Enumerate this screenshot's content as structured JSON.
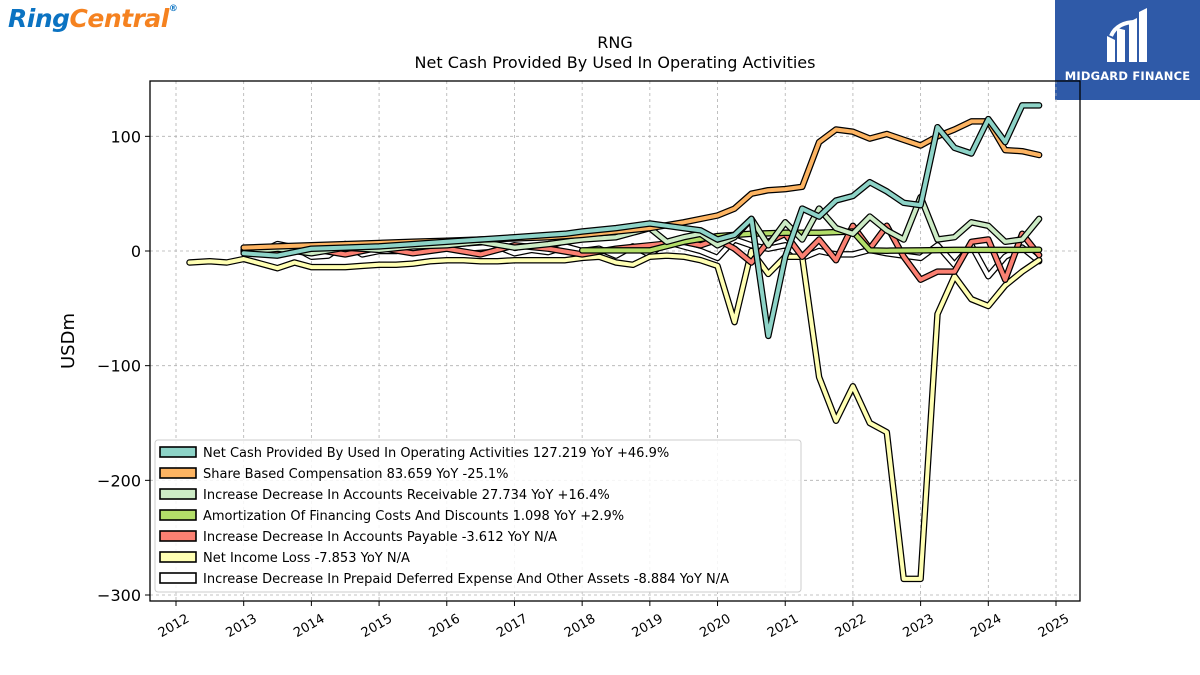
{
  "brand": {
    "left_logo_part1": "Ring",
    "left_logo_part2": "Central",
    "right_logo": "MIDGARD FINANCE"
  },
  "chart_data": {
    "type": "line",
    "title": "RNG",
    "subtitle": "Net Cash Provided By Used In Operating Activities",
    "ylabel": "USDm",
    "xlabel": "",
    "ylim": [
      -305,
      148
    ],
    "xlim": [
      2011.6,
      2025.4
    ],
    "yticks": [
      100,
      0,
      -100,
      -200,
      -300
    ],
    "ytick_labels": [
      "100",
      "0",
      "−100",
      "−200",
      "−300"
    ],
    "xticks": [
      2012,
      2013,
      2014,
      2015,
      2016,
      2017,
      2018,
      2019,
      2020,
      2021,
      2022,
      2023,
      2024,
      2025
    ],
    "xtick_labels": [
      "2012",
      "2013",
      "2014",
      "2015",
      "2016",
      "2017",
      "2018",
      "2019",
      "2020",
      "2021",
      "2022",
      "2023",
      "2024",
      "2025"
    ],
    "grid": true,
    "legend_position": "bottom-left",
    "series": [
      {
        "name": "Net Cash Provided By Used In Operating Activities",
        "legend": "Net Cash Provided By Used In Operating Activities  127.219 YoY +46.9%",
        "color": "#8dd3c7",
        "points": [
          [
            2013.0,
            -2
          ],
          [
            2013.5,
            -4
          ],
          [
            2014.0,
            2
          ],
          [
            2014.5,
            3
          ],
          [
            2015.0,
            4
          ],
          [
            2015.5,
            6
          ],
          [
            2016.0,
            8
          ],
          [
            2016.5,
            10
          ],
          [
            2017.0,
            12
          ],
          [
            2017.5,
            14
          ],
          [
            2017.75,
            15
          ],
          [
            2018.0,
            17
          ],
          [
            2018.5,
            20
          ],
          [
            2019.0,
            24
          ],
          [
            2019.25,
            22
          ],
          [
            2019.5,
            20
          ],
          [
            2019.75,
            18
          ],
          [
            2020.0,
            10
          ],
          [
            2020.25,
            14
          ],
          [
            2020.5,
            28
          ],
          [
            2020.75,
            -74
          ],
          [
            2021.0,
            -5
          ],
          [
            2021.25,
            37
          ],
          [
            2021.5,
            30
          ],
          [
            2021.75,
            44
          ],
          [
            2022.0,
            48
          ],
          [
            2022.25,
            60
          ],
          [
            2022.5,
            52
          ],
          [
            2022.75,
            42
          ],
          [
            2023.0,
            40
          ],
          [
            2023.25,
            108
          ],
          [
            2023.5,
            90
          ],
          [
            2023.75,
            85
          ],
          [
            2024.0,
            115
          ],
          [
            2024.25,
            95
          ],
          [
            2024.5,
            127
          ],
          [
            2024.75,
            127
          ]
        ]
      },
      {
        "name": "Share Based Compensation",
        "legend": "Share Based Compensation  83.659 YoY -25.1%",
        "color": "#fdb462",
        "points": [
          [
            2013.0,
            3
          ],
          [
            2013.5,
            4
          ],
          [
            2014.0,
            5
          ],
          [
            2014.5,
            6
          ],
          [
            2015.0,
            7
          ],
          [
            2015.5,
            8
          ],
          [
            2016.0,
            9
          ],
          [
            2016.5,
            10
          ],
          [
            2017.0,
            11
          ],
          [
            2017.5,
            12
          ],
          [
            2018.0,
            14
          ],
          [
            2018.5,
            17
          ],
          [
            2019.0,
            20
          ],
          [
            2019.5,
            25
          ],
          [
            2020.0,
            31
          ],
          [
            2020.25,
            37
          ],
          [
            2020.5,
            50
          ],
          [
            2020.75,
            53
          ],
          [
            2021.0,
            54
          ],
          [
            2021.25,
            56
          ],
          [
            2021.5,
            95
          ],
          [
            2021.75,
            106
          ],
          [
            2022.0,
            104
          ],
          [
            2022.25,
            98
          ],
          [
            2022.5,
            102
          ],
          [
            2022.75,
            97
          ],
          [
            2023.0,
            92
          ],
          [
            2023.25,
            100
          ],
          [
            2023.5,
            106
          ],
          [
            2023.75,
            113
          ],
          [
            2024.0,
            113
          ],
          [
            2024.25,
            88
          ],
          [
            2024.5,
            87
          ],
          [
            2024.75,
            83.7
          ]
        ]
      },
      {
        "name": "Increase Decrease In Accounts Receivable",
        "legend": "Increase Decrease In Accounts Receivable  27.734 YoY +16.4%",
        "color": "#ccebc5",
        "points": [
          [
            2013.0,
            -1
          ],
          [
            2013.5,
            2
          ],
          [
            2014.0,
            -2
          ],
          [
            2014.5,
            3
          ],
          [
            2015.0,
            1
          ],
          [
            2015.5,
            4
          ],
          [
            2016.0,
            5
          ],
          [
            2016.5,
            8
          ],
          [
            2017.0,
            3
          ],
          [
            2017.5,
            6
          ],
          [
            2018.0,
            10
          ],
          [
            2018.5,
            12
          ],
          [
            2019.0,
            20
          ],
          [
            2019.25,
            8
          ],
          [
            2019.5,
            12
          ],
          [
            2019.75,
            15
          ],
          [
            2020.0,
            5
          ],
          [
            2020.25,
            12
          ],
          [
            2020.5,
            28
          ],
          [
            2020.75,
            5
          ],
          [
            2021.0,
            25
          ],
          [
            2021.25,
            10
          ],
          [
            2021.5,
            37
          ],
          [
            2021.75,
            20
          ],
          [
            2022.0,
            15
          ],
          [
            2022.25,
            30
          ],
          [
            2022.5,
            18
          ],
          [
            2022.75,
            10
          ],
          [
            2023.0,
            47
          ],
          [
            2023.25,
            10
          ],
          [
            2023.5,
            12
          ],
          [
            2023.75,
            25
          ],
          [
            2024.0,
            22
          ],
          [
            2024.25,
            8
          ],
          [
            2024.5,
            10
          ],
          [
            2024.75,
            28
          ]
        ]
      },
      {
        "name": "Amortization Of Financing Costs And Discounts",
        "legend": "Amortization Of Financing Costs And Discounts  1.098 YoY +2.9%",
        "color": "#b3de69",
        "points": [
          [
            2018.0,
            0.5
          ],
          [
            2018.5,
            0.5
          ],
          [
            2019.0,
            0.5
          ],
          [
            2019.5,
            8
          ],
          [
            2020.0,
            13
          ],
          [
            2020.5,
            15
          ],
          [
            2021.0,
            16
          ],
          [
            2021.5,
            16
          ],
          [
            2022.0,
            17
          ],
          [
            2022.25,
            0.5
          ],
          [
            2022.5,
            0.3
          ],
          [
            2023.0,
            0.5
          ],
          [
            2023.5,
            1
          ],
          [
            2024.0,
            1
          ],
          [
            2024.5,
            1
          ],
          [
            2024.75,
            1.1
          ]
        ]
      },
      {
        "name": "Increase Decrease In Accounts Payable",
        "legend": "Increase Decrease In Accounts Payable  -3.612 YoY N/A",
        "color": "#fb8072",
        "points": [
          [
            2013.0,
            0
          ],
          [
            2013.5,
            -2
          ],
          [
            2014.0,
            2
          ],
          [
            2014.5,
            -3
          ],
          [
            2015.0,
            3
          ],
          [
            2015.5,
            -2
          ],
          [
            2016.0,
            2
          ],
          [
            2016.5,
            -3
          ],
          [
            2017.0,
            5
          ],
          [
            2017.5,
            2
          ],
          [
            2018.0,
            -3
          ],
          [
            2018.5,
            2
          ],
          [
            2019.0,
            5
          ],
          [
            2019.5,
            8
          ],
          [
            2019.75,
            5
          ],
          [
            2020.0,
            10
          ],
          [
            2020.25,
            2
          ],
          [
            2020.5,
            -10
          ],
          [
            2020.75,
            8
          ],
          [
            2021.0,
            15
          ],
          [
            2021.25,
            -5
          ],
          [
            2021.5,
            10
          ],
          [
            2021.75,
            -8
          ],
          [
            2022.0,
            22
          ],
          [
            2022.25,
            2
          ],
          [
            2022.5,
            22
          ],
          [
            2022.75,
            -5
          ],
          [
            2023.0,
            -25
          ],
          [
            2023.25,
            -18
          ],
          [
            2023.5,
            -18
          ],
          [
            2023.75,
            8
          ],
          [
            2024.0,
            10
          ],
          [
            2024.25,
            -25
          ],
          [
            2024.5,
            15
          ],
          [
            2024.75,
            -3.6
          ]
        ]
      },
      {
        "name": "Net Income Loss",
        "legend": "Net Income Loss  -7.853 YoY N/A",
        "color": "#ffffb3",
        "points": [
          [
            2012.2,
            -10
          ],
          [
            2012.5,
            -9
          ],
          [
            2012.75,
            -10
          ],
          [
            2013.0,
            -7
          ],
          [
            2013.25,
            -11
          ],
          [
            2013.5,
            -15
          ],
          [
            2013.75,
            -10
          ],
          [
            2014.0,
            -14
          ],
          [
            2014.25,
            -14
          ],
          [
            2014.5,
            -14
          ],
          [
            2014.75,
            -13
          ],
          [
            2015.0,
            -12
          ],
          [
            2015.25,
            -12
          ],
          [
            2015.5,
            -11
          ],
          [
            2015.75,
            -9
          ],
          [
            2016.0,
            -8
          ],
          [
            2016.25,
            -8
          ],
          [
            2016.5,
            -9
          ],
          [
            2016.75,
            -9
          ],
          [
            2017.0,
            -8
          ],
          [
            2017.25,
            -8
          ],
          [
            2017.5,
            -8
          ],
          [
            2017.75,
            -8
          ],
          [
            2018.0,
            -6
          ],
          [
            2018.25,
            -5
          ],
          [
            2018.5,
            -10
          ],
          [
            2018.75,
            -12
          ],
          [
            2019.0,
            -5
          ],
          [
            2019.25,
            -4
          ],
          [
            2019.5,
            -5
          ],
          [
            2019.75,
            -8
          ],
          [
            2020.0,
            -13
          ],
          [
            2020.25,
            -62
          ],
          [
            2020.5,
            0
          ],
          [
            2020.75,
            -20
          ],
          [
            2021.0,
            -5
          ],
          [
            2021.25,
            -5
          ],
          [
            2021.5,
            -110
          ],
          [
            2021.75,
            -148
          ],
          [
            2022.0,
            -118
          ],
          [
            2022.25,
            -150
          ],
          [
            2022.5,
            -158
          ],
          [
            2022.75,
            -286
          ],
          [
            2023.0,
            -286
          ],
          [
            2023.25,
            -55
          ],
          [
            2023.5,
            -22
          ],
          [
            2023.75,
            -42
          ],
          [
            2024.0,
            -48
          ],
          [
            2024.25,
            -30
          ],
          [
            2024.5,
            -18
          ],
          [
            2024.75,
            -7.9
          ]
        ]
      },
      {
        "name": "Increase Decrease In Prepaid Deferred Expense And Other Assets",
        "legend": "Increase Decrease In Prepaid Deferred Expense And Other Assets  -8.884 YoY N/A",
        "color": "#ffffff",
        "points": [
          [
            2013.0,
            1
          ],
          [
            2013.25,
            -1
          ],
          [
            2013.5,
            6
          ],
          [
            2013.75,
            3
          ],
          [
            2014.0,
            -5
          ],
          [
            2014.25,
            -4
          ],
          [
            2014.5,
            6
          ],
          [
            2014.75,
            -3
          ],
          [
            2015.0,
            0
          ],
          [
            2015.25,
            0
          ],
          [
            2015.5,
            2
          ],
          [
            2015.75,
            2
          ],
          [
            2016.0,
            3
          ],
          [
            2016.25,
            2
          ],
          [
            2016.5,
            3
          ],
          [
            2016.75,
            4
          ],
          [
            2017.0,
            -2
          ],
          [
            2017.25,
            1
          ],
          [
            2017.5,
            -1
          ],
          [
            2017.75,
            4
          ],
          [
            2018.0,
            0
          ],
          [
            2018.25,
            2
          ],
          [
            2018.5,
            -4
          ],
          [
            2018.75,
            4
          ],
          [
            2019.0,
            -3
          ],
          [
            2019.25,
            8
          ],
          [
            2019.5,
            4
          ],
          [
            2019.75,
            0
          ],
          [
            2020.0,
            -6
          ],
          [
            2020.25,
            10
          ],
          [
            2020.5,
            5
          ],
          [
            2020.75,
            2
          ],
          [
            2021.0,
            5
          ],
          [
            2021.25,
            -6
          ],
          [
            2021.5,
            0
          ],
          [
            2021.75,
            -3
          ],
          [
            2022.0,
            -3
          ],
          [
            2022.25,
            1
          ],
          [
            2022.5,
            -2
          ],
          [
            2022.75,
            -4
          ],
          [
            2023.0,
            -6
          ],
          [
            2023.25,
            5
          ],
          [
            2023.5,
            -12
          ],
          [
            2023.75,
            5
          ],
          [
            2024.0,
            -22
          ],
          [
            2024.25,
            -5
          ],
          [
            2024.5,
            3
          ],
          [
            2024.75,
            -8.9
          ]
        ]
      }
    ]
  }
}
